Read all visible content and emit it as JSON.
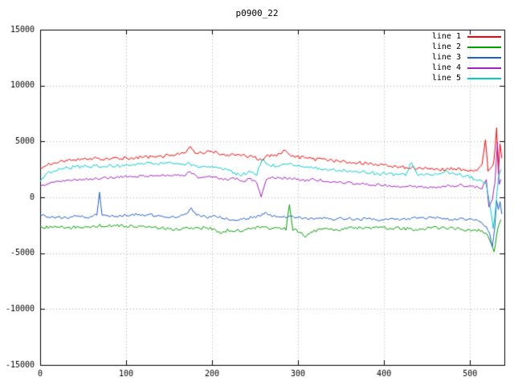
{
  "chart_data": {
    "type": "line",
    "title": "p0900_22",
    "xlabel": "",
    "ylabel": "",
    "xlim": [
      0,
      540
    ],
    "ylim": [
      -15000,
      15000
    ],
    "xticks": [
      0,
      100,
      200,
      300,
      400,
      500
    ],
    "yticks": [
      -15000,
      -10000,
      -5000,
      0,
      5000,
      10000,
      15000
    ],
    "grid": true,
    "grid_style": "dotted",
    "grid_color": "#b0b0b0",
    "border_color": "#000000",
    "background": "#ffffff",
    "legend_position": "top-right",
    "series": [
      {
        "name": "line 1",
        "color": "#ff0000",
        "noise": 150,
        "points": [
          [
            0,
            2500
          ],
          [
            10,
            3000
          ],
          [
            20,
            3200
          ],
          [
            40,
            3400
          ],
          [
            60,
            3500
          ],
          [
            80,
            3400
          ],
          [
            100,
            3500
          ],
          [
            120,
            3600
          ],
          [
            140,
            3600
          ],
          [
            150,
            3800
          ],
          [
            160,
            3900
          ],
          [
            170,
            4000
          ],
          [
            175,
            4500
          ],
          [
            180,
            3900
          ],
          [
            190,
            4000
          ],
          [
            200,
            4100
          ],
          [
            210,
            3900
          ],
          [
            220,
            3800
          ],
          [
            230,
            3900
          ],
          [
            240,
            3700
          ],
          [
            250,
            3600
          ],
          [
            258,
            3300
          ],
          [
            265,
            3700
          ],
          [
            275,
            3800
          ],
          [
            285,
            4200
          ],
          [
            290,
            3700
          ],
          [
            300,
            3600
          ],
          [
            310,
            3500
          ],
          [
            320,
            3400
          ],
          [
            330,
            3400
          ],
          [
            340,
            3300
          ],
          [
            350,
            3200
          ],
          [
            360,
            3100
          ],
          [
            370,
            3100
          ],
          [
            380,
            3000
          ],
          [
            390,
            2900
          ],
          [
            400,
            2900
          ],
          [
            410,
            2800
          ],
          [
            420,
            2700
          ],
          [
            430,
            2700
          ],
          [
            440,
            2600
          ],
          [
            450,
            2600
          ],
          [
            460,
            2500
          ],
          [
            470,
            2500
          ],
          [
            480,
            2600
          ],
          [
            490,
            2500
          ],
          [
            500,
            2400
          ],
          [
            508,
            2500
          ],
          [
            514,
            2900
          ],
          [
            518,
            5200
          ],
          [
            521,
            2300
          ],
          [
            525,
            2600
          ],
          [
            528,
            3200
          ],
          [
            531,
            6300
          ],
          [
            533,
            2200
          ],
          [
            535,
            4800
          ],
          [
            537,
            3500
          ]
        ]
      },
      {
        "name": "line 2",
        "color": "#00a000",
        "noise": 150,
        "points": [
          [
            0,
            -2700
          ],
          [
            15,
            -2600
          ],
          [
            30,
            -2700
          ],
          [
            45,
            -2700
          ],
          [
            60,
            -2600
          ],
          [
            75,
            -2500
          ],
          [
            90,
            -2500
          ],
          [
            105,
            -2600
          ],
          [
            120,
            -2600
          ],
          [
            135,
            -2700
          ],
          [
            150,
            -2800
          ],
          [
            160,
            -2900
          ],
          [
            170,
            -2700
          ],
          [
            180,
            -2800
          ],
          [
            190,
            -2700
          ],
          [
            200,
            -2800
          ],
          [
            210,
            -3200
          ],
          [
            218,
            -2900
          ],
          [
            228,
            -3000
          ],
          [
            238,
            -2900
          ],
          [
            248,
            -2800
          ],
          [
            258,
            -2700
          ],
          [
            268,
            -2800
          ],
          [
            278,
            -2700
          ],
          [
            286,
            -2800
          ],
          [
            290,
            -700
          ],
          [
            294,
            -2900
          ],
          [
            300,
            -3000
          ],
          [
            308,
            -3600
          ],
          [
            315,
            -3100
          ],
          [
            325,
            -2900
          ],
          [
            335,
            -2800
          ],
          [
            345,
            -2900
          ],
          [
            355,
            -2800
          ],
          [
            365,
            -2700
          ],
          [
            375,
            -2800
          ],
          [
            385,
            -2700
          ],
          [
            395,
            -2700
          ],
          [
            405,
            -2800
          ],
          [
            415,
            -2700
          ],
          [
            425,
            -2800
          ],
          [
            435,
            -2900
          ],
          [
            445,
            -2800
          ],
          [
            455,
            -2700
          ],
          [
            465,
            -2700
          ],
          [
            475,
            -2800
          ],
          [
            485,
            -2800
          ],
          [
            495,
            -2900
          ],
          [
            503,
            -3000
          ],
          [
            510,
            -2900
          ],
          [
            516,
            -3100
          ],
          [
            521,
            -3400
          ],
          [
            525,
            -4200
          ],
          [
            528,
            -5000
          ],
          [
            531,
            -3500
          ],
          [
            534,
            -2300
          ],
          [
            536,
            -2000
          ]
        ]
      },
      {
        "name": "line 3",
        "color": "#2060cc",
        "noise": 120,
        "points": [
          [
            0,
            -1600
          ],
          [
            15,
            -1800
          ],
          [
            30,
            -1800
          ],
          [
            45,
            -1700
          ],
          [
            60,
            -1800
          ],
          [
            66,
            -1500
          ],
          [
            69,
            400
          ],
          [
            72,
            -1600
          ],
          [
            85,
            -1700
          ],
          [
            100,
            -1600
          ],
          [
            115,
            -1500
          ],
          [
            130,
            -1600
          ],
          [
            145,
            -1700
          ],
          [
            160,
            -1800
          ],
          [
            170,
            -1400
          ],
          [
            176,
            -1000
          ],
          [
            182,
            -1500
          ],
          [
            195,
            -1800
          ],
          [
            205,
            -1700
          ],
          [
            215,
            -1900
          ],
          [
            225,
            -2000
          ],
          [
            235,
            -1900
          ],
          [
            245,
            -1800
          ],
          [
            255,
            -1700
          ],
          [
            262,
            -1400
          ],
          [
            270,
            -1700
          ],
          [
            280,
            -1800
          ],
          [
            290,
            -1700
          ],
          [
            300,
            -1800
          ],
          [
            310,
            -1900
          ],
          [
            320,
            -2000
          ],
          [
            330,
            -1900
          ],
          [
            340,
            -2000
          ],
          [
            350,
            -1900
          ],
          [
            360,
            -1900
          ],
          [
            370,
            -2000
          ],
          [
            380,
            -1900
          ],
          [
            390,
            -2000
          ],
          [
            400,
            -2000
          ],
          [
            410,
            -1900
          ],
          [
            420,
            -2000
          ],
          [
            430,
            -1900
          ],
          [
            440,
            -1800
          ],
          [
            450,
            -1900
          ],
          [
            460,
            -1800
          ],
          [
            470,
            -1900
          ],
          [
            480,
            -2000
          ],
          [
            490,
            -1900
          ],
          [
            500,
            -2000
          ],
          [
            508,
            -2100
          ],
          [
            514,
            -2300
          ],
          [
            519,
            -2600
          ],
          [
            523,
            -3300
          ],
          [
            526,
            -4400
          ],
          [
            529,
            -2500
          ],
          [
            531,
            -300
          ],
          [
            533,
            -1200
          ],
          [
            535,
            -400
          ],
          [
            537,
            -1500
          ]
        ]
      },
      {
        "name": "line 4",
        "color": "#a020c0",
        "noise": 120,
        "points": [
          [
            0,
            1000
          ],
          [
            15,
            1300
          ],
          [
            30,
            1500
          ],
          [
            50,
            1600
          ],
          [
            70,
            1700
          ],
          [
            90,
            1800
          ],
          [
            110,
            1900
          ],
          [
            130,
            1900
          ],
          [
            150,
            2000
          ],
          [
            165,
            1900
          ],
          [
            175,
            2300
          ],
          [
            182,
            1800
          ],
          [
            195,
            1900
          ],
          [
            205,
            1800
          ],
          [
            215,
            1600
          ],
          [
            225,
            1700
          ],
          [
            235,
            1500
          ],
          [
            245,
            1600
          ],
          [
            252,
            1400
          ],
          [
            257,
            100
          ],
          [
            263,
            1500
          ],
          [
            270,
            1800
          ],
          [
            280,
            1700
          ],
          [
            290,
            1700
          ],
          [
            300,
            1600
          ],
          [
            310,
            1500
          ],
          [
            320,
            1600
          ],
          [
            330,
            1500
          ],
          [
            340,
            1400
          ],
          [
            350,
            1300
          ],
          [
            360,
            1300
          ],
          [
            370,
            1200
          ],
          [
            380,
            1200
          ],
          [
            390,
            1100
          ],
          [
            400,
            1100
          ],
          [
            410,
            1000
          ],
          [
            420,
            1000
          ],
          [
            430,
            1000
          ],
          [
            440,
            900
          ],
          [
            450,
            900
          ],
          [
            460,
            900
          ],
          [
            470,
            1000
          ],
          [
            480,
            1000
          ],
          [
            490,
            1100
          ],
          [
            500,
            1000
          ],
          [
            508,
            900
          ],
          [
            514,
            800
          ],
          [
            519,
            1500
          ],
          [
            522,
            -900
          ],
          [
            526,
            -200
          ],
          [
            529,
            1200
          ],
          [
            532,
            4900
          ],
          [
            534,
            1200
          ],
          [
            536,
            1600
          ]
        ]
      },
      {
        "name": "line 5",
        "color": "#00cccc",
        "noise": 150,
        "points": [
          [
            0,
            1500
          ],
          [
            10,
            2200
          ],
          [
            20,
            2500
          ],
          [
            40,
            2700
          ],
          [
            60,
            2800
          ],
          [
            80,
            2800
          ],
          [
            100,
            2900
          ],
          [
            120,
            3000
          ],
          [
            140,
            3000
          ],
          [
            155,
            3100
          ],
          [
            170,
            3000
          ],
          [
            180,
            2800
          ],
          [
            190,
            2700
          ],
          [
            200,
            2700
          ],
          [
            215,
            2500
          ],
          [
            228,
            2100
          ],
          [
            235,
            2000
          ],
          [
            245,
            2400
          ],
          [
            252,
            2100
          ],
          [
            258,
            3400
          ],
          [
            265,
            2900
          ],
          [
            275,
            2800
          ],
          [
            285,
            3000
          ],
          [
            295,
            2900
          ],
          [
            305,
            2800
          ],
          [
            315,
            2700
          ],
          [
            325,
            2600
          ],
          [
            335,
            2500
          ],
          [
            345,
            2400
          ],
          [
            355,
            2400
          ],
          [
            365,
            2300
          ],
          [
            375,
            2300
          ],
          [
            385,
            2200
          ],
          [
            395,
            2100
          ],
          [
            405,
            2100
          ],
          [
            415,
            2000
          ],
          [
            425,
            2000
          ],
          [
            432,
            3200
          ],
          [
            438,
            2100
          ],
          [
            450,
            2000
          ],
          [
            460,
            2100
          ],
          [
            470,
            2300
          ],
          [
            480,
            2200
          ],
          [
            490,
            2000
          ],
          [
            500,
            1800
          ],
          [
            508,
            1600
          ],
          [
            514,
            1400
          ],
          [
            519,
            1200
          ],
          [
            523,
            -500
          ],
          [
            527,
            -2800
          ],
          [
            530,
            -800
          ],
          [
            533,
            1800
          ],
          [
            536,
            2500
          ]
        ]
      }
    ]
  }
}
